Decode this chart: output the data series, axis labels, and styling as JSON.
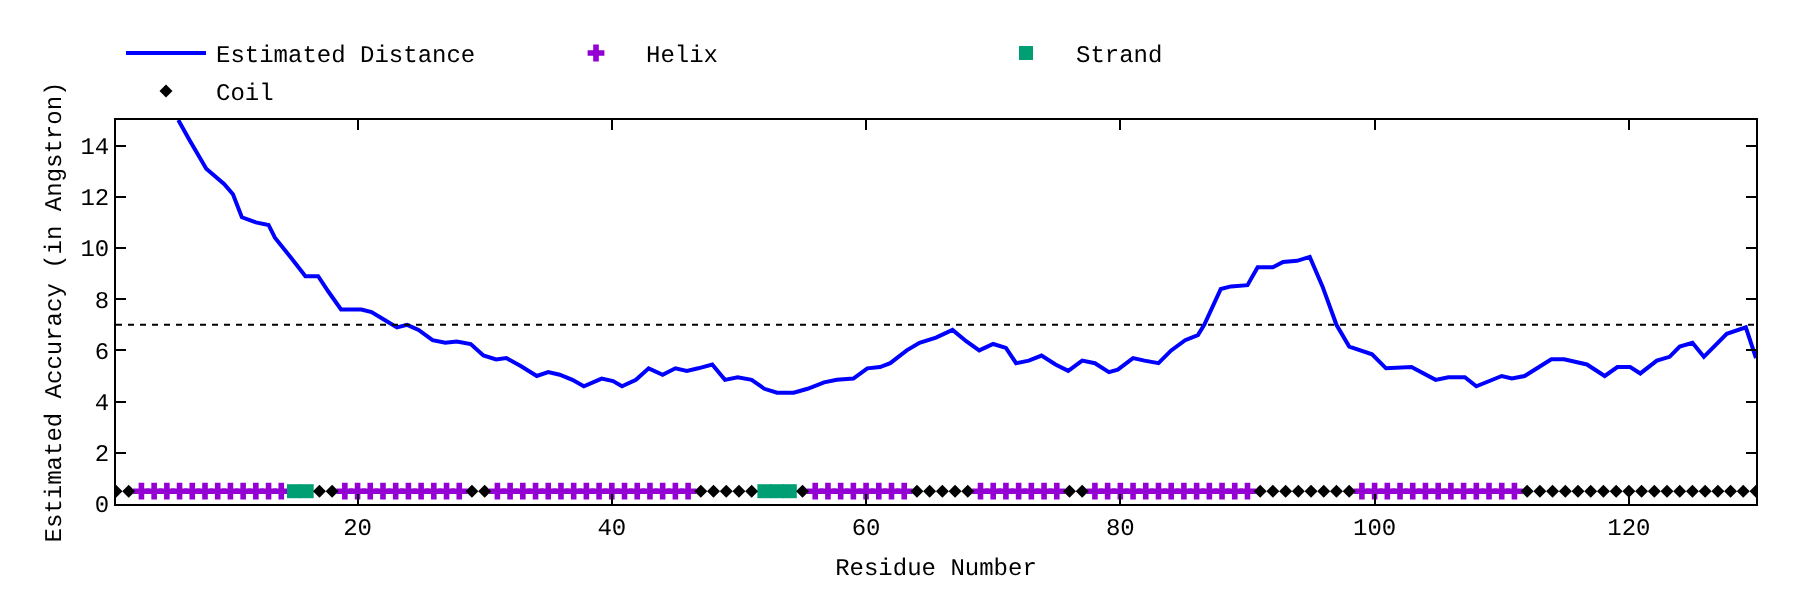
{
  "chart_data": {
    "type": "line",
    "xlabel": "Residue Number",
    "ylabel": "Estimated Accuracy (in Angstron)",
    "xlim": [
      1,
      130
    ],
    "xticks": [
      20,
      40,
      60,
      80,
      100,
      120
    ],
    "ylim": [
      0,
      15
    ],
    "yticks": [
      0,
      2,
      4,
      6,
      8,
      10,
      12,
      14
    ],
    "legend": "top",
    "ref_lines": [
      {
        "axis": "y",
        "value": 7,
        "color": "#000000",
        "line_style": "dotted"
      }
    ],
    "series": [
      {
        "name": "Estimated Distance",
        "color": "#0000ff",
        "marker": "none",
        "line_style": "solid",
        "x": [
          5.9,
          6.8,
          8.1,
          9.5,
          10.2,
          10.9,
          12.0,
          13.0,
          13.5,
          14.8,
          15.9,
          16.9,
          17.7,
          18.7,
          20.3,
          21.1,
          22.1,
          23.1,
          23.9,
          24.8,
          25.9,
          26.9,
          27.8,
          28.9,
          29.9,
          30.9,
          31.7,
          32.8,
          34.1,
          35.0,
          35.9,
          36.9,
          37.8,
          39.2,
          40.1,
          40.8,
          41.9,
          42.9,
          44.0,
          45.0,
          45.9,
          46.8,
          47.9,
          48.9,
          49.9,
          51.0,
          52.0,
          53.0,
          54.3,
          55.4,
          56.7,
          57.7,
          59.0,
          60.1,
          61.1,
          61.9,
          63.2,
          64.2,
          65.5,
          66.8,
          67.9,
          68.9,
          70.0,
          71.0,
          71.8,
          72.8,
          73.8,
          74.9,
          75.9,
          77.0,
          78.0,
          79.1,
          79.8,
          81.0,
          81.9,
          83.0,
          84.0,
          85.1,
          86.1,
          86.6,
          87.9,
          88.7,
          90.0,
          90.8,
          92.0,
          92.8,
          93.9,
          94.9,
          95.9,
          97.0,
          98.0,
          99.8,
          100.9,
          102.9,
          104.8,
          105.8,
          107.1,
          108.0,
          110.0,
          110.8,
          111.8,
          113.9,
          114.9,
          116.7,
          118.1,
          119.1,
          120.1,
          120.9,
          122.2,
          123.2,
          124.0,
          125.0,
          125.9,
          127.7,
          129.2,
          130.0
        ],
        "values": [
          15.0,
          14.2,
          13.1,
          12.5,
          12.1,
          11.2,
          11.0,
          10.9,
          10.4,
          9.6,
          8.9,
          8.9,
          8.3,
          7.6,
          7.6,
          7.5,
          7.2,
          6.9,
          7.0,
          6.8,
          6.4,
          6.3,
          6.35,
          6.25,
          5.8,
          5.65,
          5.7,
          5.4,
          5.0,
          5.15,
          5.05,
          4.85,
          4.6,
          4.9,
          4.8,
          4.6,
          4.85,
          5.3,
          5.05,
          5.3,
          5.2,
          5.3,
          5.45,
          4.85,
          4.95,
          4.85,
          4.5,
          4.35,
          4.35,
          4.5,
          4.75,
          4.85,
          4.9,
          5.3,
          5.35,
          5.5,
          6.0,
          6.3,
          6.5,
          6.8,
          6.35,
          6.0,
          6.25,
          6.1,
          5.5,
          5.6,
          5.8,
          5.45,
          5.2,
          5.6,
          5.5,
          5.15,
          5.25,
          5.7,
          5.6,
          5.5,
          6.0,
          6.4,
          6.6,
          7.0,
          8.4,
          8.5,
          8.55,
          9.25,
          9.25,
          9.45,
          9.5,
          9.65,
          8.5,
          7.0,
          6.15,
          5.85,
          5.3,
          5.35,
          4.85,
          4.95,
          4.95,
          4.6,
          5.0,
          4.9,
          5.0,
          5.65,
          5.65,
          5.45,
          5.0,
          5.35,
          5.35,
          5.1,
          5.6,
          5.75,
          6.15,
          6.3,
          5.75,
          6.65,
          6.9,
          5.7
        ]
      },
      {
        "name": "Helix",
        "type": "scatter",
        "color": "#9400d3",
        "marker": "cross",
        "x": [
          3,
          4,
          5,
          6,
          7,
          8,
          9,
          10,
          11,
          12,
          13,
          14,
          19,
          20,
          21,
          22,
          23,
          24,
          25,
          26,
          27,
          28,
          31,
          32,
          33,
          34,
          35,
          36,
          37,
          38,
          39,
          40,
          41,
          42,
          43,
          44,
          45,
          46,
          56,
          57,
          58,
          59,
          60,
          61,
          62,
          63,
          69,
          70,
          71,
          72,
          73,
          74,
          75,
          78,
          79,
          80,
          81,
          82,
          83,
          84,
          85,
          86,
          87,
          88,
          89,
          90,
          99,
          100,
          101,
          102,
          103,
          104,
          105,
          106,
          107,
          108,
          109,
          110,
          111
        ],
        "values": [
          0.5,
          0.5,
          0.5,
          0.5,
          0.5,
          0.5,
          0.5,
          0.5,
          0.5,
          0.5,
          0.5,
          0.5,
          0.5,
          0.5,
          0.5,
          0.5,
          0.5,
          0.5,
          0.5,
          0.5,
          0.5,
          0.5,
          0.5,
          0.5,
          0.5,
          0.5,
          0.5,
          0.5,
          0.5,
          0.5,
          0.5,
          0.5,
          0.5,
          0.5,
          0.5,
          0.5,
          0.5,
          0.5,
          0.5,
          0.5,
          0.5,
          0.5,
          0.5,
          0.5,
          0.5,
          0.5,
          0.5,
          0.5,
          0.5,
          0.5,
          0.5,
          0.5,
          0.5,
          0.5,
          0.5,
          0.5,
          0.5,
          0.5,
          0.5,
          0.5,
          0.5,
          0.5,
          0.5,
          0.5,
          0.5,
          0.5,
          0.5,
          0.5,
          0.5,
          0.5,
          0.5,
          0.5,
          0.5,
          0.5,
          0.5,
          0.5,
          0.5,
          0.5,
          0.5
        ]
      },
      {
        "name": "Strand",
        "type": "scatter",
        "color": "#009e73",
        "marker": "square",
        "x": [
          15,
          16,
          52,
          53,
          54
        ],
        "values": [
          0.5,
          0.5,
          0.5,
          0.5,
          0.5
        ]
      },
      {
        "name": "Coil",
        "type": "scatter",
        "color": "#000000",
        "marker": "diamond",
        "x": [
          1,
          2,
          17,
          18,
          29,
          30,
          47,
          48,
          49,
          50,
          51,
          55,
          64,
          65,
          66,
          67,
          68,
          76,
          77,
          91,
          92,
          93,
          94,
          95,
          96,
          97,
          98,
          112,
          113,
          114,
          115,
          116,
          117,
          118,
          119,
          120,
          121,
          122,
          123,
          124,
          125,
          126,
          127,
          128,
          129,
          130
        ],
        "values": [
          0.5,
          0.5,
          0.5,
          0.5,
          0.5,
          0.5,
          0.5,
          0.5,
          0.5,
          0.5,
          0.5,
          0.5,
          0.5,
          0.5,
          0.5,
          0.5,
          0.5,
          0.5,
          0.5,
          0.5,
          0.5,
          0.5,
          0.5,
          0.5,
          0.5,
          0.5,
          0.5,
          0.5,
          0.5,
          0.5,
          0.5,
          0.5,
          0.5,
          0.5,
          0.5,
          0.5,
          0.5,
          0.5,
          0.5,
          0.5,
          0.5,
          0.5,
          0.5,
          0.5,
          0.5,
          0.5
        ]
      }
    ]
  }
}
